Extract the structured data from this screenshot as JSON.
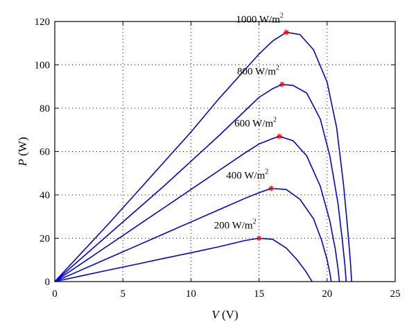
{
  "chart_data": {
    "type": "line",
    "xlabel_var": "V",
    "xlabel_unit": "(V)",
    "ylabel_var": "P",
    "ylabel_unit": "(W)",
    "xlim": [
      0,
      25
    ],
    "ylim": [
      0,
      120
    ],
    "xticks": [
      0,
      5,
      10,
      15,
      20,
      25
    ],
    "yticks": [
      0,
      20,
      40,
      60,
      80,
      100,
      120
    ],
    "grid": true,
    "series": [
      {
        "name": "1000 W/m2",
        "label_value": "1000 W/m",
        "label_sup": "2",
        "mpp": [
          17.0,
          115
        ],
        "points": [
          [
            0,
            0
          ],
          [
            2,
            13.5
          ],
          [
            4,
            27
          ],
          [
            6,
            41
          ],
          [
            8,
            55
          ],
          [
            10,
            69
          ],
          [
            12,
            84
          ],
          [
            14,
            98
          ],
          [
            15,
            105
          ],
          [
            16,
            111
          ],
          [
            17,
            115
          ],
          [
            18,
            114
          ],
          [
            19,
            107
          ],
          [
            20,
            92
          ],
          [
            20.7,
            71
          ],
          [
            21.2,
            45
          ],
          [
            21.5,
            25
          ],
          [
            21.7,
            10
          ],
          [
            21.8,
            0
          ]
        ]
      },
      {
        "name": "800 W/m2",
        "label_value": "800 W/m",
        "label_sup": "2",
        "mpp": [
          16.7,
          91
        ],
        "points": [
          [
            0,
            0
          ],
          [
            2,
            11
          ],
          [
            4,
            22
          ],
          [
            6,
            33
          ],
          [
            8,
            44
          ],
          [
            10,
            55.5
          ],
          [
            12,
            67
          ],
          [
            14,
            79
          ],
          [
            15,
            85
          ],
          [
            16,
            89
          ],
          [
            16.7,
            91
          ],
          [
            17.5,
            90.5
          ],
          [
            18.5,
            87
          ],
          [
            19.5,
            75
          ],
          [
            20.2,
            58
          ],
          [
            20.8,
            36
          ],
          [
            21.1,
            20
          ],
          [
            21.3,
            8
          ],
          [
            21.4,
            0
          ]
        ]
      },
      {
        "name": "600 W/m2",
        "label_value": "600 W/m",
        "label_sup": "2",
        "mpp": [
          16.5,
          67
        ],
        "points": [
          [
            0,
            0
          ],
          [
            2,
            8.5
          ],
          [
            4,
            17
          ],
          [
            6,
            25.5
          ],
          [
            8,
            34
          ],
          [
            10,
            42.5
          ],
          [
            12,
            51
          ],
          [
            14,
            59.5
          ],
          [
            15,
            63.5
          ],
          [
            16,
            66
          ],
          [
            16.5,
            67
          ],
          [
            17.5,
            65
          ],
          [
            18.5,
            58
          ],
          [
            19.5,
            44
          ],
          [
            20.2,
            28
          ],
          [
            20.6,
            15
          ],
          [
            20.8,
            6
          ],
          [
            20.9,
            0
          ]
        ]
      },
      {
        "name": "400 W/m2",
        "label_value": "400 W/m",
        "label_sup": "2",
        "mpp": [
          15.9,
          43
        ],
        "points": [
          [
            0,
            0
          ],
          [
            2,
            5.5
          ],
          [
            4,
            11
          ],
          [
            6,
            16.5
          ],
          [
            8,
            22
          ],
          [
            10,
            27.5
          ],
          [
            12,
            33
          ],
          [
            14,
            38.5
          ],
          [
            15,
            41
          ],
          [
            15.9,
            43
          ],
          [
            17,
            42.5
          ],
          [
            18,
            38
          ],
          [
            19,
            29
          ],
          [
            19.6,
            19
          ],
          [
            20,
            10
          ],
          [
            20.2,
            4
          ],
          [
            20.3,
            0
          ]
        ]
      },
      {
        "name": "200 W/m2",
        "label_value": "200 W/m",
        "label_sup": "2",
        "mpp": [
          15.0,
          20
        ],
        "points": [
          [
            0,
            0
          ],
          [
            2,
            2.7
          ],
          [
            4,
            5.4
          ],
          [
            6,
            8
          ],
          [
            8,
            10.7
          ],
          [
            10,
            13.3
          ],
          [
            12,
            16
          ],
          [
            14,
            19
          ],
          [
            15,
            20
          ],
          [
            16,
            19.5
          ],
          [
            17,
            15.5
          ],
          [
            17.8,
            10
          ],
          [
            18.4,
            5
          ],
          [
            18.7,
            2
          ],
          [
            18.9,
            0
          ]
        ]
      }
    ]
  }
}
